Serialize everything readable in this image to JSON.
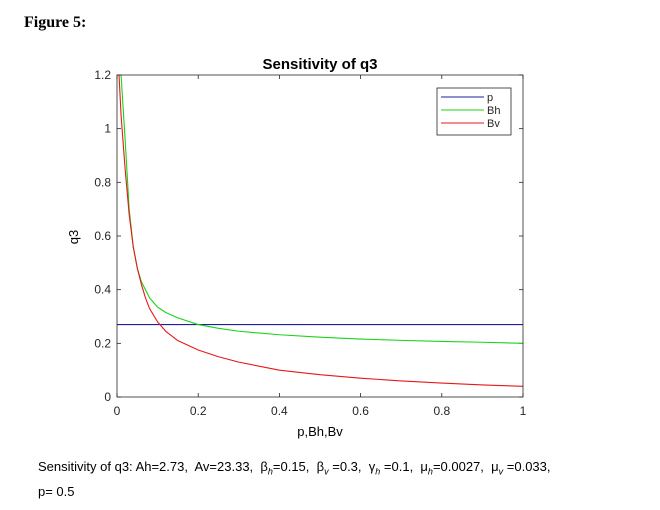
{
  "figure_label": "Figure 5:",
  "caption": {
    "prefix": "Sensitivity of q3:",
    "ah": "Ah=2.73,",
    "av": "Av=23.33,",
    "beta_h": "=0.15,",
    "beta_v": "=0.3,",
    "gamma_h": "=0.1,",
    "mu_h": "=0.0027,",
    "mu_v": "=0.033,",
    "p": "p= 0.5",
    "sym_beta": "β",
    "sym_gamma": "γ",
    "sym_mu": "μ",
    "sub_h": "h",
    "sub_v": "v"
  },
  "chart_data": {
    "type": "line",
    "title": "Sensitivity of q3",
    "xlabel": "p,Bh,Bv",
    "ylabel": "q3",
    "xlim": [
      0,
      1
    ],
    "ylim": [
      0,
      1.2
    ],
    "xticks": [
      0,
      0.2,
      0.4,
      0.6,
      0.8,
      1
    ],
    "yticks": [
      0,
      0.2,
      0.4,
      0.6,
      0.8,
      1,
      1.2
    ],
    "xtick_labels": [
      "0",
      "0.2",
      "0.4",
      "0.6",
      "0.8",
      "1"
    ],
    "ytick_labels": [
      "0",
      "0.2",
      "0.4",
      "0.6",
      "0.8",
      "1",
      "1.2"
    ],
    "grid": false,
    "legend_position": "top-right",
    "series": [
      {
        "name": "p",
        "color": "#1f1f9e",
        "x": [
          0,
          0.25,
          0.5,
          0.75,
          1
        ],
        "y": [
          0.27,
          0.27,
          0.27,
          0.27,
          0.27
        ]
      },
      {
        "name": "Bh",
        "color": "#18d418",
        "x": [
          0.01,
          0.02,
          0.03,
          0.04,
          0.05,
          0.06,
          0.07,
          0.08,
          0.1,
          0.12,
          0.15,
          0.2,
          0.25,
          0.3,
          0.4,
          0.5,
          0.6,
          0.7,
          0.8,
          0.9,
          1.0
        ],
        "y": [
          1.2,
          0.96,
          0.7,
          0.56,
          0.48,
          0.43,
          0.4,
          0.37,
          0.335,
          0.315,
          0.295,
          0.27,
          0.256,
          0.245,
          0.232,
          0.223,
          0.216,
          0.211,
          0.207,
          0.204,
          0.2
        ]
      },
      {
        "name": "Bv",
        "color": "#e81818",
        "x": [
          0.005,
          0.01,
          0.02,
          0.03,
          0.04,
          0.05,
          0.06,
          0.07,
          0.08,
          0.1,
          0.12,
          0.15,
          0.2,
          0.25,
          0.3,
          0.4,
          0.5,
          0.6,
          0.7,
          0.8,
          0.9,
          1.0
        ],
        "y": [
          1.2,
          1.05,
          0.85,
          0.68,
          0.56,
          0.48,
          0.42,
          0.37,
          0.33,
          0.28,
          0.245,
          0.21,
          0.175,
          0.15,
          0.13,
          0.1,
          0.083,
          0.07,
          0.06,
          0.052,
          0.045,
          0.04
        ]
      }
    ]
  }
}
